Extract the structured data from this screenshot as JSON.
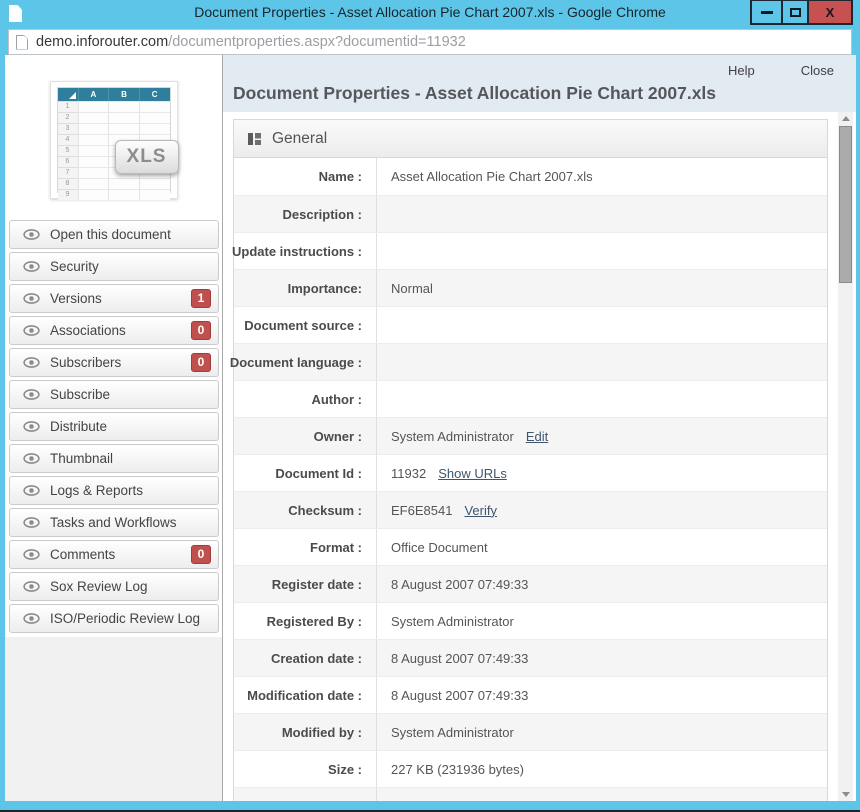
{
  "window": {
    "title": "Document Properties - Asset Allocation Pie Chart 2007.xls - Google Chrome",
    "controls": {
      "minimize_icon": "minimize",
      "maximize_icon": "maximize",
      "close_icon": "close"
    }
  },
  "urlbar": {
    "host": "demo.inforouter.com",
    "path": "/documentproperties.aspx?documentid=11932"
  },
  "file_icon": {
    "badge": "XLS",
    "columns": [
      "A",
      "B",
      "C"
    ],
    "row_numbers": [
      "1",
      "2",
      "3",
      "4",
      "5",
      "6",
      "7",
      "8",
      "9"
    ]
  },
  "sidebar": {
    "items": [
      {
        "label": "Open this document"
      },
      {
        "label": "Security"
      },
      {
        "label": "Versions",
        "badge": "1"
      },
      {
        "label": "Associations",
        "badge": "0"
      },
      {
        "label": "Subscribers",
        "badge": "0"
      },
      {
        "label": "Subscribe"
      },
      {
        "label": "Distribute"
      },
      {
        "label": "Thumbnail"
      },
      {
        "label": "Logs & Reports"
      },
      {
        "label": "Tasks and Workflows"
      },
      {
        "label": "Comments",
        "badge": "0"
      },
      {
        "label": "Sox Review Log"
      },
      {
        "label": "ISO/Periodic Review Log"
      }
    ]
  },
  "header": {
    "help_label": "Help",
    "close_label": "Close",
    "title": "Document Properties - Asset Allocation Pie Chart 2007.xls"
  },
  "general": {
    "title": "General",
    "rows": [
      {
        "label": "Name :",
        "value": "Asset Allocation Pie Chart 2007.xls"
      },
      {
        "label": "Description :",
        "value": ""
      },
      {
        "label": "Update instructions :",
        "value": ""
      },
      {
        "label": "Importance:",
        "value": "Normal"
      },
      {
        "label": "Document source :",
        "value": ""
      },
      {
        "label": "Document language :",
        "value": ""
      },
      {
        "label": "Author :",
        "value": ""
      },
      {
        "label": "Owner :",
        "value": "System Administrator",
        "link": "Edit"
      },
      {
        "label": "Document Id :",
        "value": "11932",
        "link": "Show URLs"
      },
      {
        "label": "Checksum :",
        "value": "EF6E8541",
        "link": "Verify"
      },
      {
        "label": "Format :",
        "value": "Office Document"
      },
      {
        "label": "Register date :",
        "value": "8 August 2007 07:49:33"
      },
      {
        "label": "Registered By :",
        "value": "System Administrator"
      },
      {
        "label": "Creation date :",
        "value": "8 August 2007 07:49:33"
      },
      {
        "label": "Modification date :",
        "value": "8 August 2007 07:49:33"
      },
      {
        "label": "Modified by :",
        "value": "System Administrator"
      },
      {
        "label": "Size :",
        "value": "227 KB (231936 bytes)"
      },
      {
        "label": "",
        "value": "",
        "icon": "folder-icon"
      }
    ]
  },
  "colors": {
    "titlebar_blue": "#5dc6e8",
    "close_button_red": "#c75050",
    "badge_red": "#c0504d",
    "sheet_header_teal": "#2f7e9b",
    "page_header_band": "#e2eaf2"
  }
}
